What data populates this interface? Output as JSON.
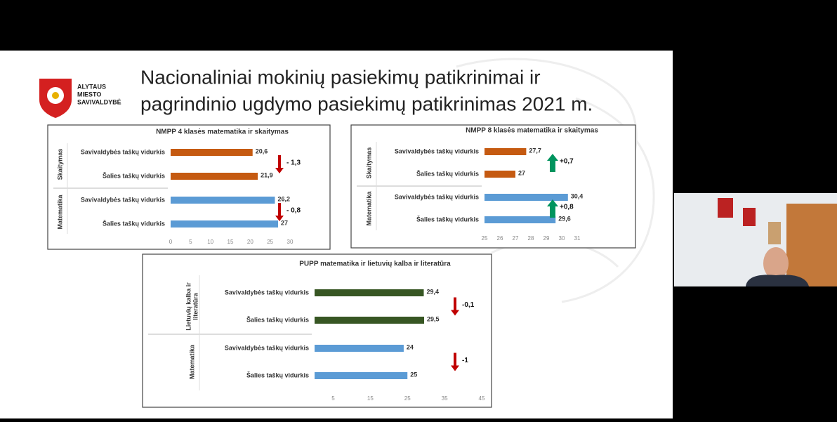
{
  "slide": {
    "title_lines": [
      "Nacionaliniai mokinių pasiekimų patikrinimai ir",
      "pagrindinio ugdymo pasiekimų patikrinimas 2021 m."
    ],
    "logo_lines": [
      "ALYTAUS",
      "MIESTO",
      "SAVIVALDYBĖ"
    ]
  },
  "chart_data": [
    {
      "type": "bar",
      "orientation": "horizontal",
      "title": "NMPP 4 klasės matematika ir skaitymas",
      "xlim": [
        0,
        30
      ],
      "xticks": [
        0,
        5,
        10,
        15,
        20,
        25,
        30
      ],
      "groups": [
        {
          "label_lines": [
            "Skaitymas"
          ],
          "categories": [
            "Savivaldybės taškų vidurkis",
            "Šalies taškų vidurkis"
          ],
          "values": [
            20.6,
            21.9
          ],
          "value_labels": [
            "20,6",
            "21,9"
          ],
          "color": "#c55a11",
          "annotation": {
            "text": "- 1,3",
            "arrow": "down",
            "color": "#c00000"
          }
        },
        {
          "label_lines": [
            "Matematika"
          ],
          "categories": [
            "Savivaldybės taškų vidurkis",
            "Šalies taškų vidurkis"
          ],
          "values": [
            26.2,
            27
          ],
          "value_labels": [
            "26,2",
            "27"
          ],
          "color": "#5b9bd5",
          "annotation": {
            "text": "- 0,8",
            "arrow": "down",
            "color": "#c00000"
          }
        }
      ]
    },
    {
      "type": "bar",
      "orientation": "horizontal",
      "title": "NMPP 8 klasės matematika ir skaitymas",
      "xlim": [
        25,
        31
      ],
      "xticks": [
        25,
        26,
        27,
        28,
        29,
        30,
        31
      ],
      "groups": [
        {
          "label_lines": [
            "Skaitymas"
          ],
          "categories": [
            "Savivaldybės taškų vidurkis",
            "Šalies taškų vidurkis"
          ],
          "values": [
            27.7,
            27
          ],
          "value_labels": [
            "27,7",
            "27"
          ],
          "color": "#c55a11",
          "annotation": {
            "text": "+0,7",
            "arrow": "up",
            "color": "#00945e"
          }
        },
        {
          "label_lines": [
            "Matematika"
          ],
          "categories": [
            "Savivaldybės taškų vidurkis",
            "Šalies taškų vidurkis"
          ],
          "values": [
            30.4,
            29.6
          ],
          "value_labels": [
            "30,4",
            "29,6"
          ],
          "color": "#5b9bd5",
          "annotation": {
            "text": "+0,8",
            "arrow": "up",
            "color": "#00945e"
          }
        }
      ]
    },
    {
      "type": "bar",
      "orientation": "horizontal",
      "title": "PUPP matematika ir lietuvių kalba ir literatūra",
      "xlim": [
        0,
        45
      ],
      "xticks": [
        5,
        15,
        25,
        35,
        45
      ],
      "groups": [
        {
          "label_lines": [
            "Lietuvių kalba ir",
            "literatūra"
          ],
          "categories": [
            "Savivaldybės taškų vidurkis",
            "Šalies taškų vidurkis"
          ],
          "values": [
            29.4,
            29.5
          ],
          "value_labels": [
            "29,4",
            "29,5"
          ],
          "color": "#375623",
          "annotation": {
            "text": "-0,1",
            "arrow": "down",
            "color": "#c00000"
          }
        },
        {
          "label_lines": [
            "Matematika"
          ],
          "categories": [
            "Savivaldybės taškų vidurkis",
            "Šalies taškų vidurkis"
          ],
          "values": [
            24,
            25
          ],
          "value_labels": [
            "24",
            "25"
          ],
          "color": "#5b9bd5",
          "annotation": {
            "text": "-1",
            "arrow": "down",
            "color": "#c00000"
          }
        }
      ]
    }
  ]
}
